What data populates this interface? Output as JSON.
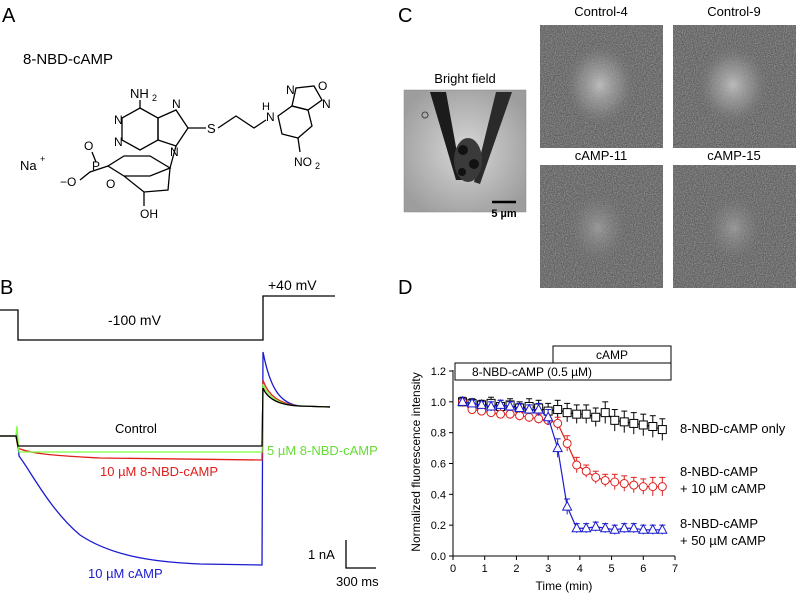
{
  "panels": {
    "A": {
      "letter": "A",
      "compound_name": "8-NBD-cAMP",
      "atoms": {
        "nh2": "NH",
        "nh2_sub": "2",
        "n": "N",
        "s": "S",
        "h": "H",
        "o": "O",
        "p": "P",
        "oh": "OH",
        "na": "Na",
        "na_charge": "+",
        "no2": "NO",
        "no2_sub": "2",
        "o_minus": "−O"
      }
    },
    "B": {
      "letter": "B",
      "voltage_step": "-100 mV",
      "voltage_post": "+40 mV",
      "trace_labels": {
        "control": "Control",
        "nbd5": "5 µM 8-NBD-cAMP",
        "nbd10": "10 µM 8-NBD-cAMP",
        "camp10": "10 µM cAMP"
      },
      "scale_current": "1 nA",
      "scale_time": "300 ms",
      "colors": {
        "control": "#000000",
        "nbd5": "#7fff3f",
        "nbd10": "#e0201c",
        "camp10": "#1a1ad0"
      }
    },
    "C": {
      "letter": "C",
      "bright_field": "Bright field",
      "scale_bar": "5 µm",
      "images": [
        "Control-4",
        "Control-9",
        "cAMP-11",
        "cAMP-15"
      ]
    },
    "D": {
      "letter": "D",
      "bar_camp": "cAMP",
      "bar_nbd": "8-NBD-cAMP (0.5 µM)"
    }
  },
  "chart_data": {
    "type": "line",
    "xlabel": "Time (min)",
    "ylabel": "Normalized fluorescence intensity",
    "xlim": [
      0,
      7
    ],
    "ylim": [
      0,
      1.2
    ],
    "xticks": [
      "0",
      "1",
      "2",
      "3",
      "4",
      "5",
      "6",
      "7"
    ],
    "yticks": [
      "0.0",
      "0.2",
      "0.4",
      "0.6",
      "0.8",
      "1.0",
      "1.2"
    ],
    "series": [
      {
        "label_lines": [
          "8-NBD-cAMP only"
        ],
        "color": "#000000",
        "marker": "square",
        "x": [
          0.3,
          0.6,
          0.9,
          1.2,
          1.5,
          1.8,
          2.1,
          2.4,
          2.7,
          3.0,
          3.3,
          3.6,
          3.9,
          4.2,
          4.5,
          4.8,
          5.1,
          5.4,
          5.7,
          6.0,
          6.3,
          6.6
        ],
        "y": [
          1.0,
          0.99,
          0.98,
          0.99,
          0.97,
          0.98,
          0.96,
          0.97,
          0.96,
          0.94,
          0.95,
          0.93,
          0.92,
          0.92,
          0.9,
          0.93,
          0.88,
          0.87,
          0.86,
          0.85,
          0.84,
          0.82
        ],
        "err": [
          0.03,
          0.03,
          0.03,
          0.04,
          0.04,
          0.04,
          0.04,
          0.05,
          0.05,
          0.05,
          0.06,
          0.06,
          0.06,
          0.06,
          0.06,
          0.07,
          0.07,
          0.07,
          0.07,
          0.07,
          0.07,
          0.07
        ]
      },
      {
        "label_lines": [
          "8-NBD-cAMP",
          "+ 10 µM cAMP"
        ],
        "color": "#e0201c",
        "marker": "circle",
        "x": [
          0.3,
          0.6,
          0.9,
          1.2,
          1.5,
          1.8,
          2.1,
          2.4,
          2.7,
          3.0,
          3.3,
          3.6,
          3.9,
          4.2,
          4.5,
          4.8,
          5.1,
          5.4,
          5.7,
          6.0,
          6.3,
          6.6
        ],
        "y": [
          1.0,
          0.95,
          0.94,
          0.93,
          0.92,
          0.92,
          0.91,
          0.9,
          0.89,
          0.88,
          0.86,
          0.73,
          0.59,
          0.55,
          0.51,
          0.49,
          0.48,
          0.47,
          0.46,
          0.45,
          0.45,
          0.45
        ],
        "err": [
          0.02,
          0.02,
          0.02,
          0.02,
          0.02,
          0.03,
          0.03,
          0.03,
          0.03,
          0.03,
          0.04,
          0.05,
          0.05,
          0.04,
          0.04,
          0.04,
          0.05,
          0.05,
          0.05,
          0.05,
          0.06,
          0.06
        ]
      },
      {
        "label_lines": [
          "8-NBD-cAMP",
          "+ 50 µM cAMP"
        ],
        "color": "#1a1ad0",
        "marker": "triangle",
        "x": [
          0.3,
          0.6,
          0.9,
          1.2,
          1.5,
          1.8,
          2.1,
          2.4,
          2.7,
          3.0,
          3.3,
          3.6,
          3.9,
          4.2,
          4.5,
          4.8,
          5.1,
          5.4,
          5.7,
          6.0,
          6.3,
          6.6
        ],
        "y": [
          1.0,
          0.99,
          0.98,
          0.97,
          0.98,
          0.97,
          0.96,
          0.95,
          0.95,
          0.9,
          0.7,
          0.32,
          0.18,
          0.18,
          0.19,
          0.18,
          0.17,
          0.18,
          0.18,
          0.17,
          0.17,
          0.17
        ],
        "err": [
          0.02,
          0.02,
          0.02,
          0.03,
          0.03,
          0.03,
          0.03,
          0.03,
          0.04,
          0.05,
          0.06,
          0.05,
          0.03,
          0.03,
          0.03,
          0.03,
          0.03,
          0.03,
          0.03,
          0.03,
          0.03,
          0.03
        ]
      }
    ],
    "legend": "inline-right"
  }
}
